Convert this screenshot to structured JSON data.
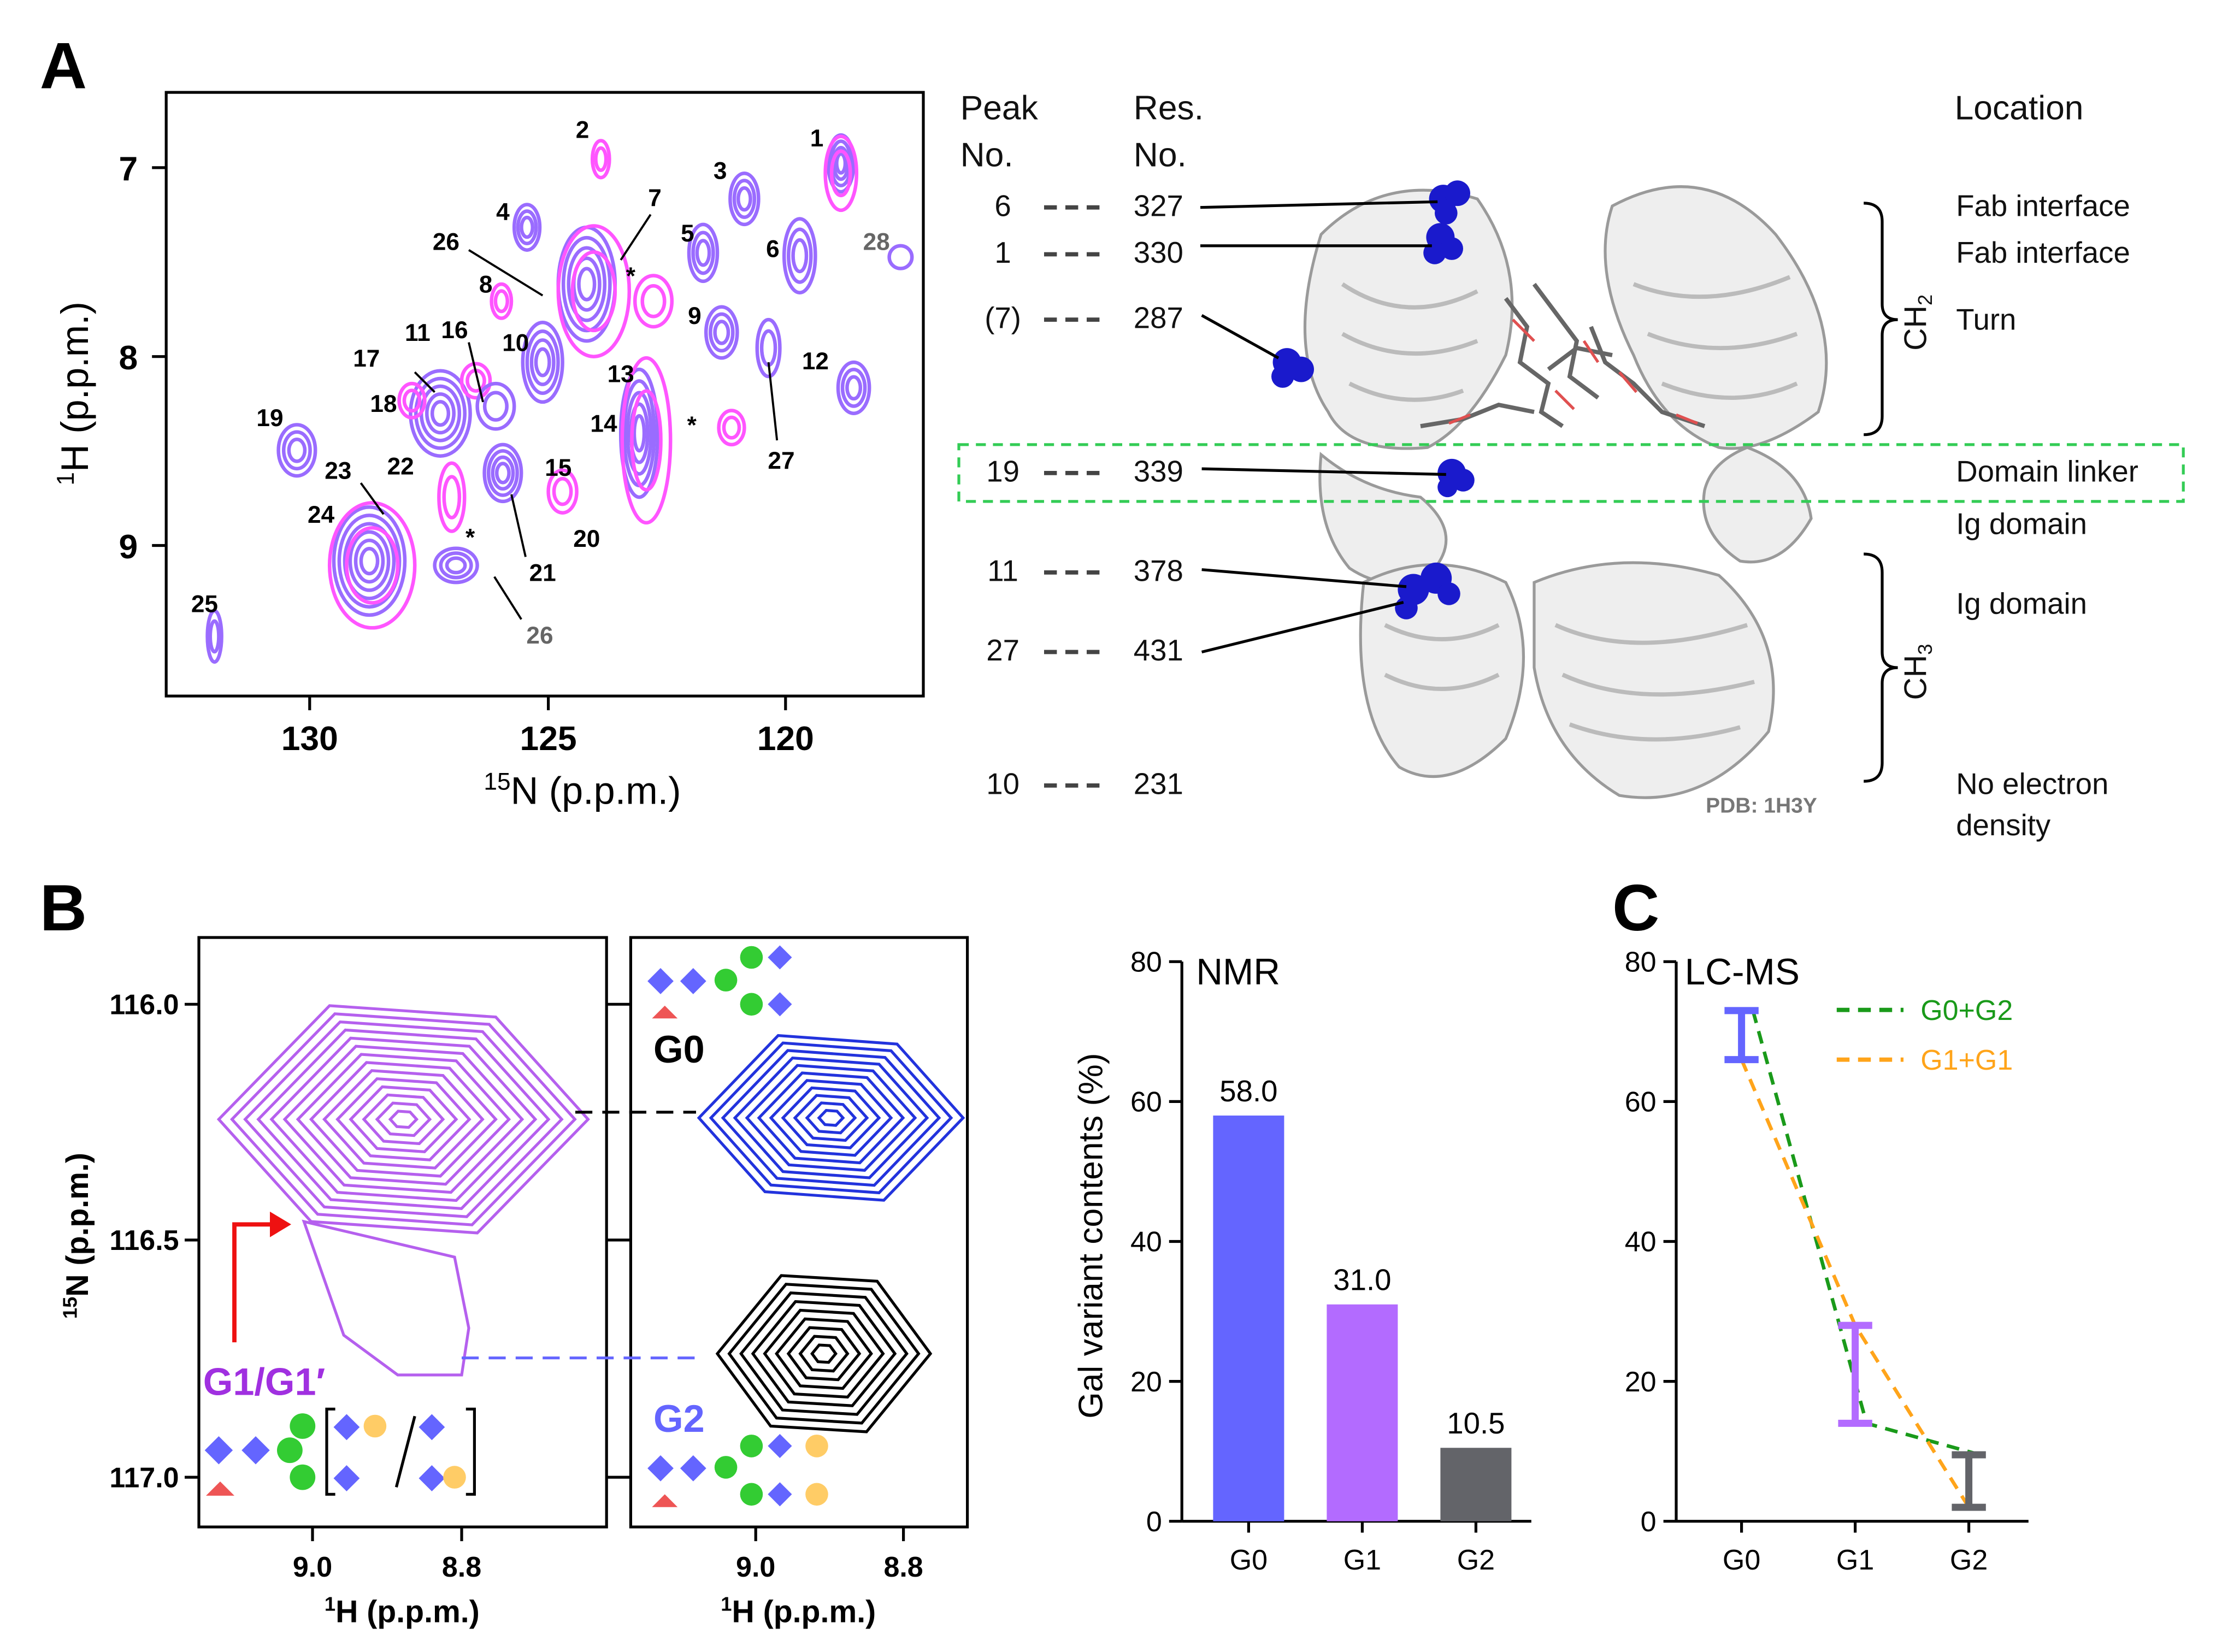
{
  "panelA": {
    "label": "A",
    "spectrum": {
      "xlabel_sup": "15",
      "xlabel": "N (p.p.m.)",
      "ylabel_sup": "1",
      "ylabel": "H (p.p.m.)",
      "x_ticks": [
        "130",
        "125",
        "120"
      ],
      "y_ticks": [
        "7",
        "8",
        "9"
      ],
      "peak_labels": [
        "1",
        "2",
        "3",
        "4",
        "5",
        "6",
        "7",
        "8",
        "9",
        "10",
        "11",
        "12",
        "13",
        "14",
        "15",
        "16",
        "17",
        "18",
        "19",
        "20",
        "21",
        "22",
        "23",
        "24",
        "25",
        "26",
        "27",
        "28",
        "26",
        "*",
        "*",
        "*"
      ]
    },
    "table": {
      "col_peak": [
        "Peak",
        "No."
      ],
      "col_res": [
        "Res.",
        "No."
      ],
      "col_loc": "Location",
      "rows": [
        {
          "peak": "6",
          "res": "327",
          "loc": "Fab interface"
        },
        {
          "peak": "1",
          "res": "330",
          "loc": "Fab interface"
        },
        {
          "peak": "(7)",
          "res": "287",
          "loc": "Turn"
        },
        {
          "peak": "19",
          "res": "339",
          "loc": "Domain linker"
        },
        {
          "peak": "",
          "res": "",
          "loc": "Ig domain"
        },
        {
          "peak": "11",
          "res": "378",
          "loc": "Ig domain"
        },
        {
          "peak": "27",
          "res": "431",
          "loc": ""
        },
        {
          "peak": "10",
          "res": "231",
          "loc": "No electron"
        }
      ],
      "loc_extra": "density",
      "domain1": {
        "base": "CH",
        "sub": "2"
      },
      "domain2": {
        "base": "CH",
        "sub": "3"
      },
      "pdb": "PDB: 1H3Y"
    }
  },
  "panelB": {
    "label": "B",
    "ylabel_sup": "15",
    "ylabel": "N (p.p.m.)",
    "xlabel_sup": "1",
    "xlabel": "H (p.p.m.)",
    "y_ticks": [
      "116.0",
      "116.5",
      "117.0"
    ],
    "x_ticks": [
      "9.0",
      "8.8"
    ],
    "glycan_labels": {
      "g1": "G1/G1′",
      "g0": "G0",
      "g2": "G2"
    },
    "nmr_title": "NMR",
    "nmr_ylabel": "Gal variant contents (%)"
  },
  "panelC": {
    "label": "C",
    "title": "LC-MS",
    "legend": [
      "G0+G2",
      "G1+G1"
    ]
  },
  "colors": {
    "g0": "#6465ff",
    "g1": "#b36bff",
    "g2": "#636469",
    "magenta": "#ff55ff",
    "lavender": "#9a6cff",
    "green": "#1a9a1a",
    "orange": "#ffa41a",
    "linker": "#33cc55"
  },
  "chart_data": [
    {
      "type": "bar",
      "title": "NMR",
      "categories": [
        "G0",
        "G1",
        "G2"
      ],
      "values": [
        58.0,
        31.0,
        10.5
      ],
      "data_labels": [
        "58.0",
        "31.0",
        "10.5"
      ],
      "ylabel": "Gal variant contents (%)",
      "ylim": [
        0,
        80
      ],
      "y_ticks": [
        0,
        20,
        40,
        60,
        80
      ]
    },
    {
      "type": "line",
      "title": "LC-MS",
      "categories": [
        "G0",
        "G1",
        "G2"
      ],
      "ranges": [
        {
          "low": 66,
          "high": 73
        },
        {
          "low": 14,
          "high": 28
        },
        {
          "low": 2,
          "high": 9.5
        }
      ],
      "series": [
        {
          "name": "G0+G2",
          "values": [
            73,
            14,
            9.5
          ]
        },
        {
          "name": "G1+G1",
          "values": [
            66,
            28,
            2
          ]
        }
      ],
      "ylim": [
        0,
        80
      ],
      "y_ticks": [
        0,
        20,
        40,
        60,
        80
      ]
    }
  ]
}
